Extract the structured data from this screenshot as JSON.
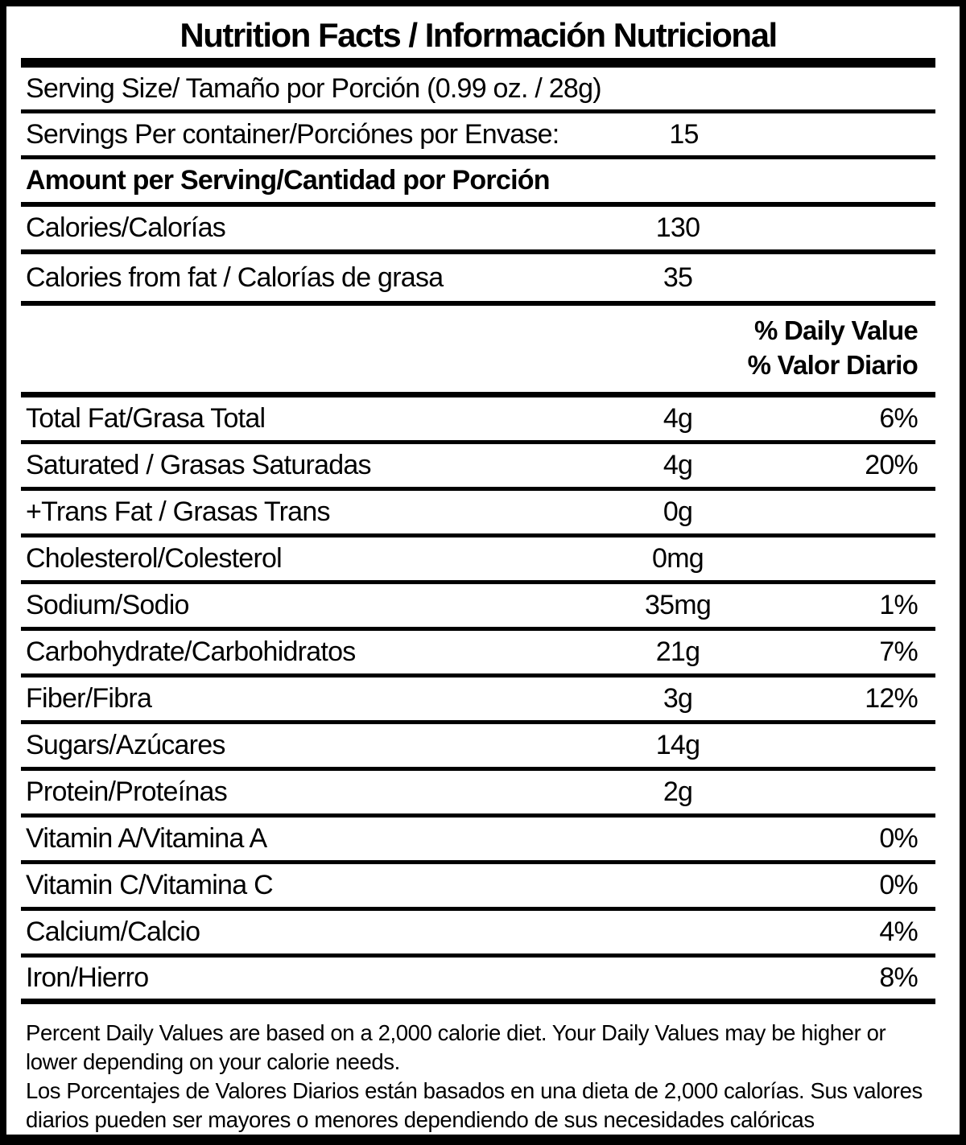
{
  "label": {
    "title": "Nutrition Facts / Información Nutricional",
    "serving_size": {
      "label": "Serving Size/ Tamaño por Porción  (0.99 oz. / 28g)"
    },
    "servings_per_container": {
      "label": "Servings Per container/Porciónes por Envase:",
      "value": "15"
    },
    "amount_per_serving_heading": "Amount per Serving/Cantidad por Porción",
    "calories": {
      "label": "Calories/Calorías",
      "value": "130"
    },
    "calories_from_fat": {
      "label": "Calories from fat / Calorías de grasa",
      "value": "35"
    },
    "daily_value_header": {
      "line1": "% Daily Value",
      "line2": "% Valor Diario"
    },
    "nutrients": [
      {
        "label": "Total Fat/Grasa Total",
        "amount": "4g",
        "dv": "6%"
      },
      {
        "label": "Saturated / Grasas Saturadas",
        "amount": "4g",
        "dv": "20%"
      },
      {
        "label": "+Trans Fat / Grasas Trans",
        "amount": "0g",
        "dv": ""
      },
      {
        "label": "Cholesterol/Colesterol",
        "amount": "0mg",
        "dv": ""
      },
      {
        "label": "Sodium/Sodio",
        "amount": "35mg",
        "dv": "1%"
      },
      {
        "label": "Carbohydrate/Carbohidratos",
        "amount": "21g",
        "dv": "7%"
      },
      {
        "label": "Fiber/Fibra",
        "amount": "3g",
        "dv": "12%"
      },
      {
        "label": "Sugars/Azúcares",
        "amount": "14g",
        "dv": ""
      },
      {
        "label": "Protein/Proteínas",
        "amount": "2g",
        "dv": ""
      },
      {
        "label": "Vitamin A/Vitamina A",
        "amount": "",
        "dv": "0%"
      },
      {
        "label": "Vitamin C/Vitamina C",
        "amount": "",
        "dv": "0%"
      },
      {
        "label": "Calcium/Calcio",
        "amount": "",
        "dv": "4%"
      },
      {
        "label": "Iron/Hierro",
        "amount": "",
        "dv": "8%"
      }
    ],
    "footnotes": {
      "en": "Percent Daily Values are based on a 2,000 calorie diet. Your Daily Values may be higher or lower depending on your calorie needs.",
      "es": "Los Porcentajes de Valores Diarios están basados en una dieta de 2,000 calorías. Sus valores diarios pueden ser mayores o menores dependiendo de sus necesidades calóricas"
    },
    "colors": {
      "ink": "#000000",
      "background": "#ffffff"
    }
  }
}
